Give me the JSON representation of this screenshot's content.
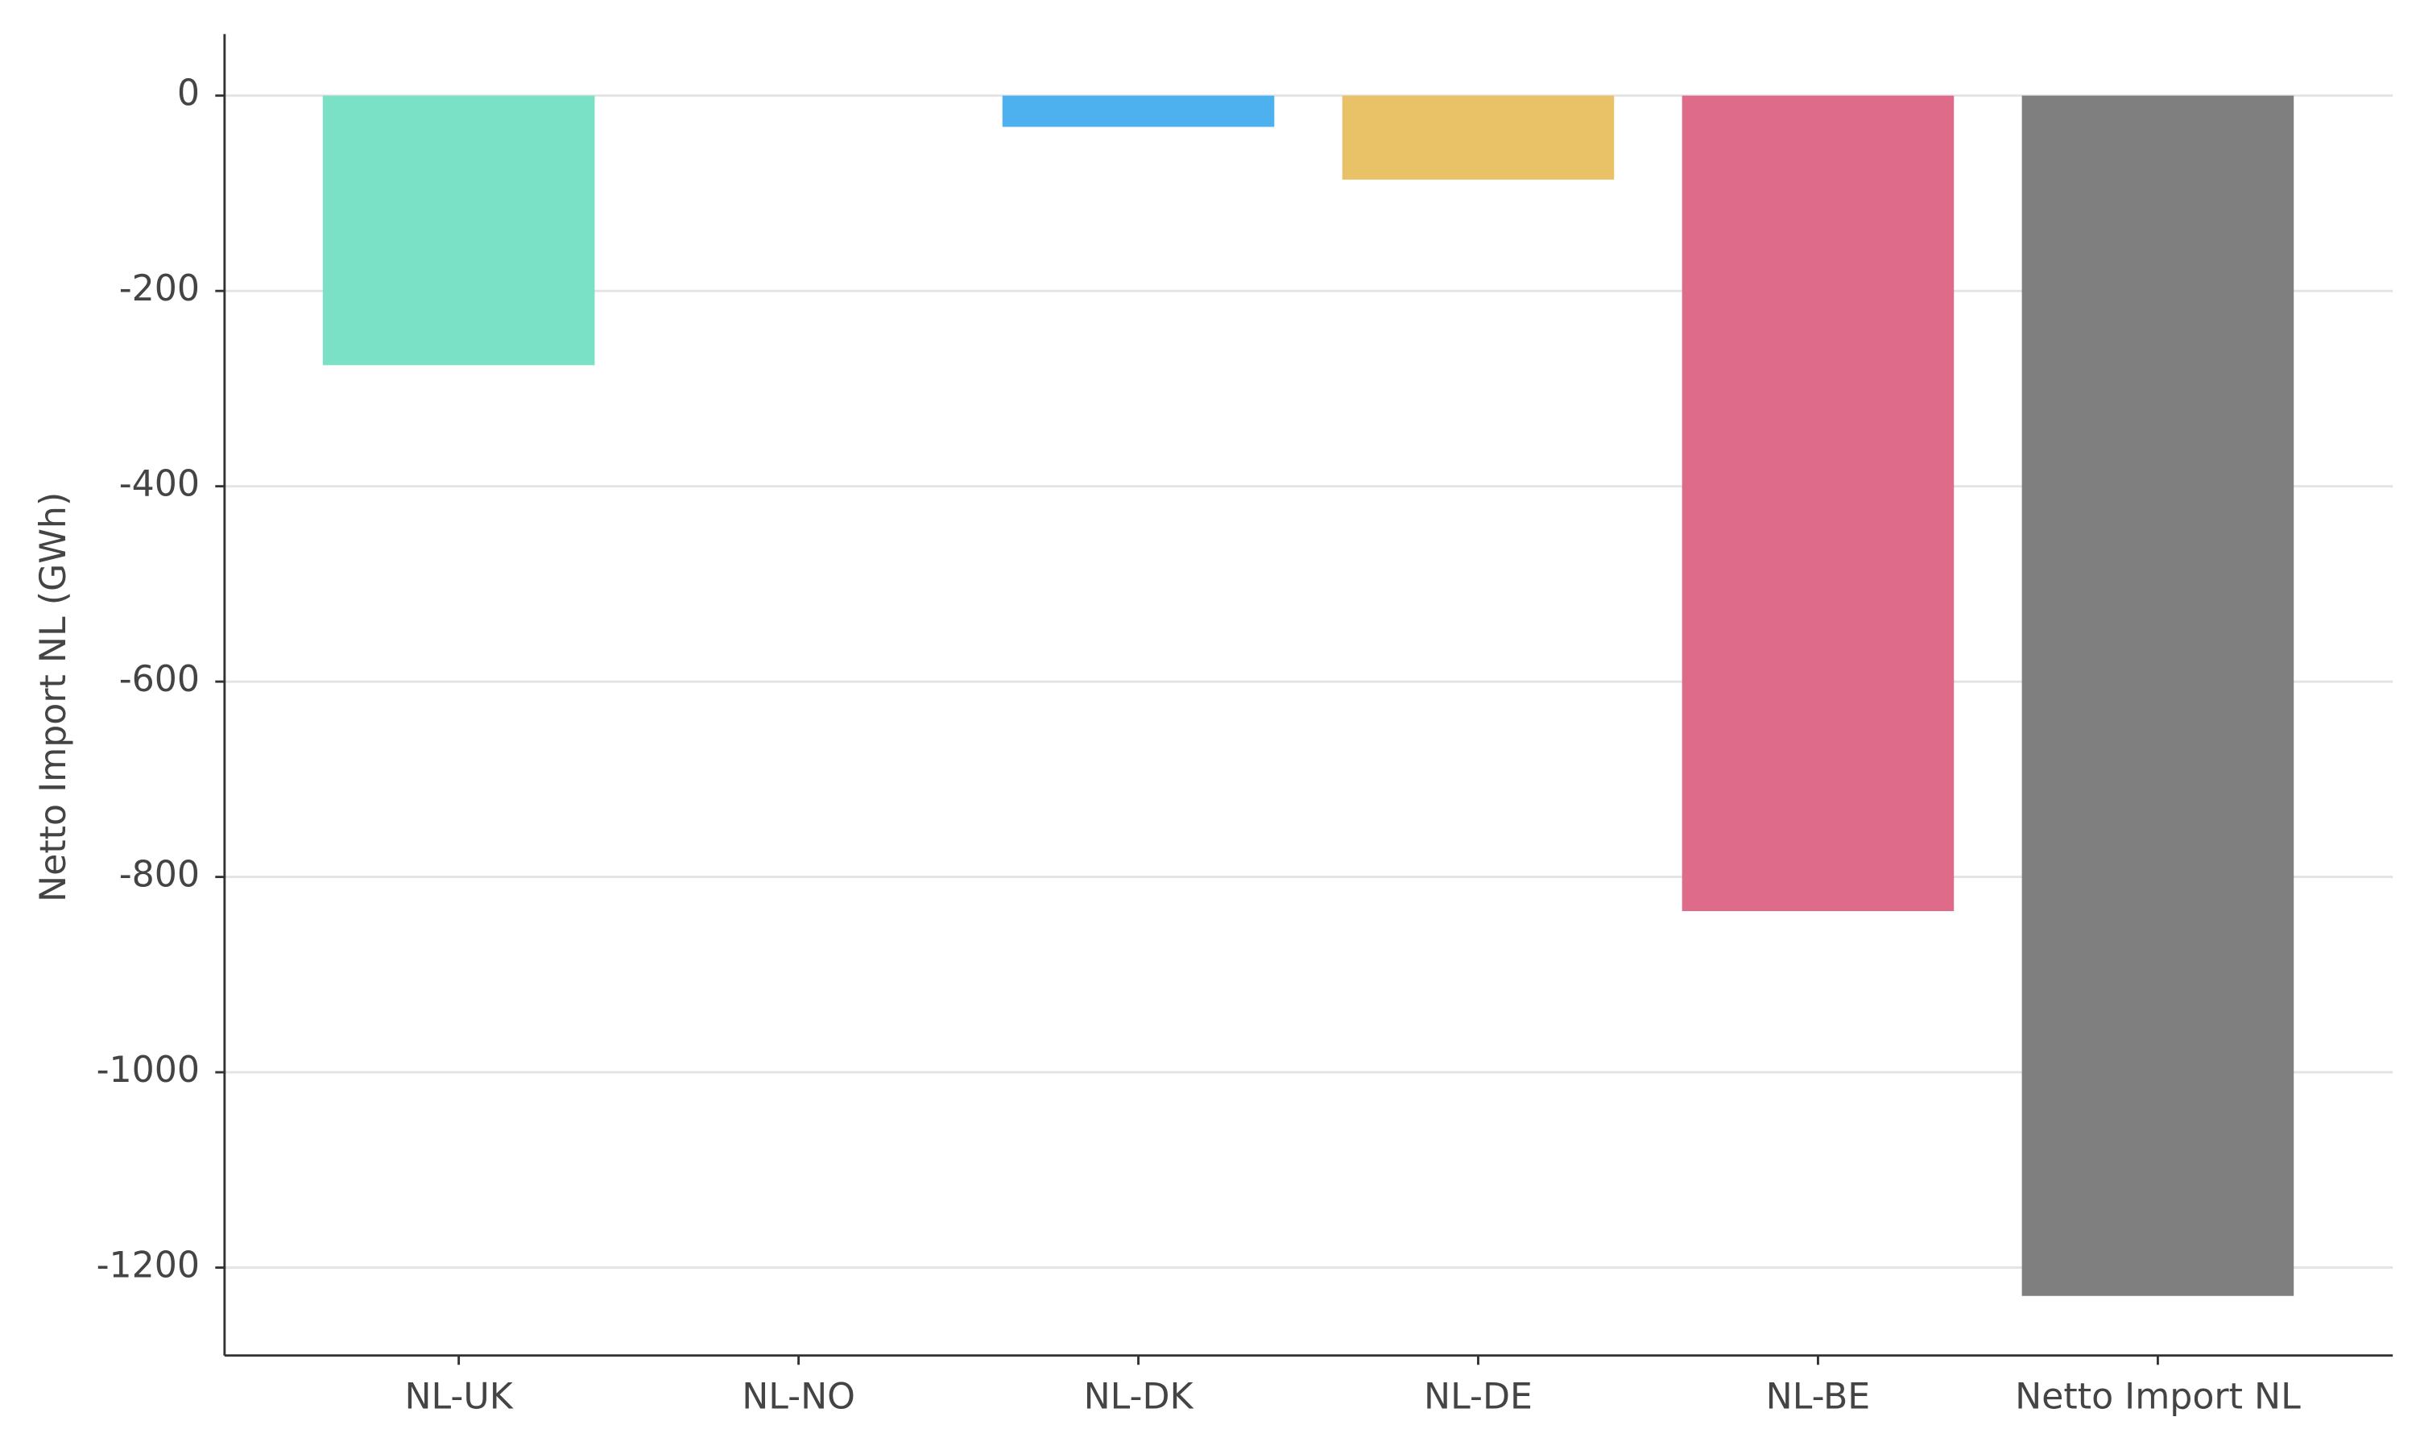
{
  "chart_data": {
    "type": "bar",
    "y_label": "Netto Import NL (GWh)",
    "categories": [
      "NL-UK",
      "NL-NO",
      "NL-DK",
      "NL-DE",
      "NL-BE",
      "Netto Import NL"
    ],
    "values": [
      -276,
      0,
      -32,
      -86,
      -835,
      -1229
    ],
    "colors": [
      "#7ae0c6",
      "#9b8fd9",
      "#4db1f0",
      "#e9c267",
      "#de6b8a",
      "#7f7f7f"
    ],
    "ylim": [
      -1290,
      63
    ],
    "yticks": [
      0,
      -200,
      -400,
      -600,
      -800,
      -1000,
      -1200
    ],
    "grid": true
  }
}
